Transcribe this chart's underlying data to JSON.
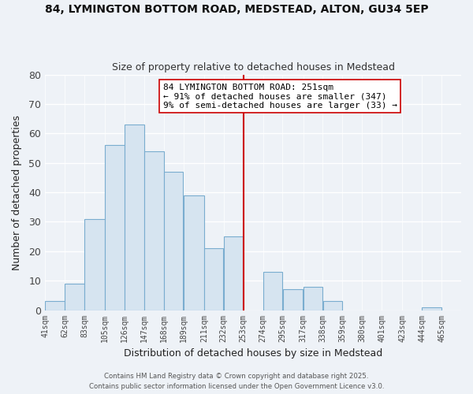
{
  "title_line1": "84, LYMINGTON BOTTOM ROAD, MEDSTEAD, ALTON, GU34 5EP",
  "title_line2": "Size of property relative to detached houses in Medstead",
  "bar_left_edges": [
    41,
    62,
    83,
    105,
    126,
    147,
    168,
    189,
    211,
    232,
    253,
    274,
    295,
    317,
    338,
    359,
    380,
    401,
    423,
    444
  ],
  "bar_widths": [
    21,
    21,
    22,
    21,
    21,
    21,
    21,
    22,
    21,
    21,
    21,
    21,
    22,
    21,
    21,
    21,
    21,
    22,
    21,
    21
  ],
  "bar_heights": [
    3,
    9,
    31,
    56,
    63,
    54,
    47,
    39,
    21,
    25,
    0,
    13,
    7,
    8,
    3,
    0,
    0,
    0,
    0,
    1
  ],
  "bar_color": "#d6e4f0",
  "bar_edgecolor": "#7aadcf",
  "xlabel": "Distribution of detached houses by size in Medstead",
  "ylabel": "Number of detached properties",
  "ylim": [
    0,
    80
  ],
  "yticks": [
    0,
    10,
    20,
    30,
    40,
    50,
    60,
    70,
    80
  ],
  "xtick_labels": [
    "41sqm",
    "62sqm",
    "83sqm",
    "105sqm",
    "126sqm",
    "147sqm",
    "168sqm",
    "189sqm",
    "211sqm",
    "232sqm",
    "253sqm",
    "274sqm",
    "295sqm",
    "317sqm",
    "338sqm",
    "359sqm",
    "380sqm",
    "401sqm",
    "423sqm",
    "444sqm",
    "465sqm"
  ],
  "vline_x": 253,
  "vline_color": "#cc0000",
  "annotation_title": "84 LYMINGTON BOTTOM ROAD: 251sqm",
  "annotation_line1": "← 91% of detached houses are smaller (347)",
  "annotation_line2": "9% of semi-detached houses are larger (33) →",
  "footer_line1": "Contains HM Land Registry data © Crown copyright and database right 2025.",
  "footer_line2": "Contains public sector information licensed under the Open Government Licence v3.0.",
  "background_color": "#eef2f7",
  "grid_color": "#ffffff"
}
